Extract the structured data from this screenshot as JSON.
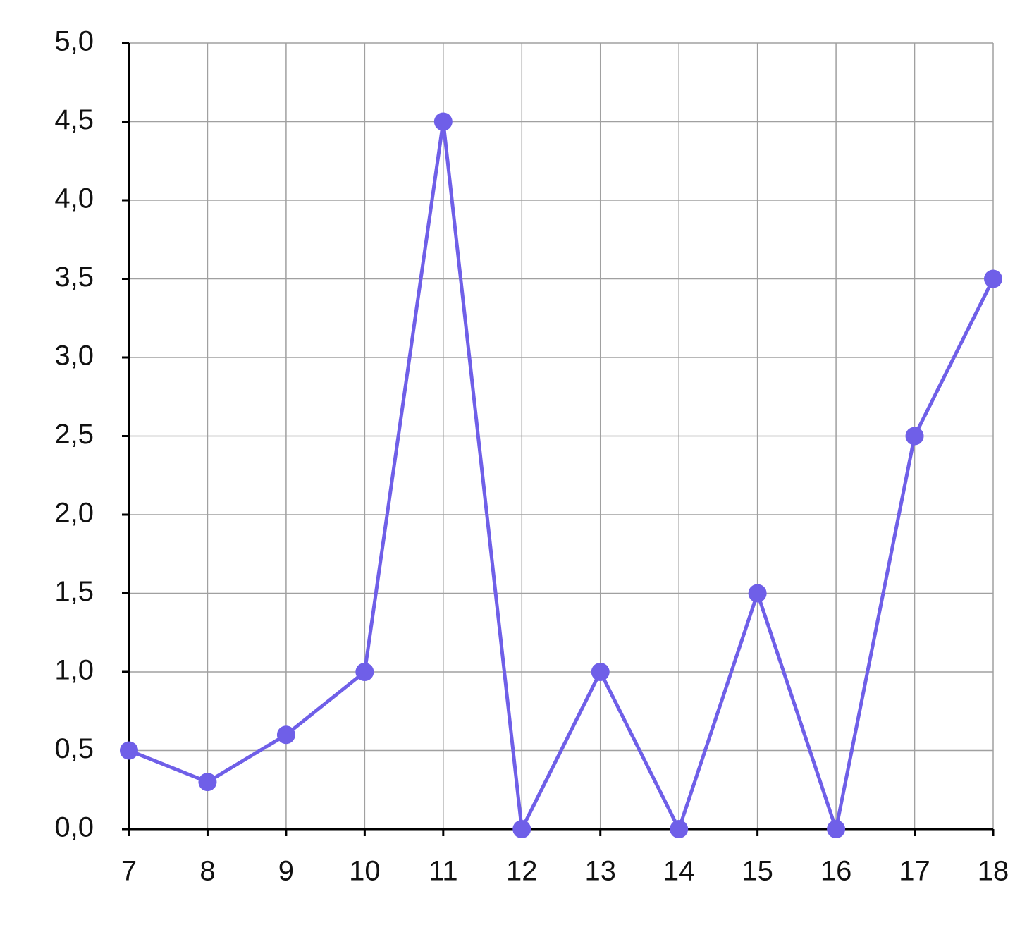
{
  "chart_data": {
    "type": "line",
    "x": [
      7,
      8,
      9,
      10,
      11,
      12,
      13,
      14,
      15,
      16,
      17,
      18
    ],
    "values": [
      0.5,
      0.3,
      0.6,
      1.0,
      4.5,
      0,
      1.0,
      0,
      1.5,
      0,
      2.5,
      3.5
    ],
    "color": "#6f5fe8",
    "xlim": [
      7,
      18
    ],
    "xticks": [
      7,
      8,
      9,
      10,
      11,
      12,
      13,
      14,
      15,
      16,
      17,
      18
    ],
    "ylim": [
      0,
      5
    ],
    "yticks": [
      {
        "value": 0,
        "label": "0,0"
      },
      {
        "value": 0.5,
        "label": "0,5"
      },
      {
        "value": 1,
        "label": "1,0"
      },
      {
        "value": 1.5,
        "label": "1,5"
      },
      {
        "value": 2,
        "label": "2,0"
      },
      {
        "value": 2.5,
        "label": "2,5"
      },
      {
        "value": 3,
        "label": "3,0"
      },
      {
        "value": 3.5,
        "label": "3,5"
      },
      {
        "value": 4,
        "label": "4,0"
      },
      {
        "value": 4.5,
        "label": "4,5"
      },
      {
        "value": 5,
        "label": "5,0"
      }
    ],
    "grid": true
  }
}
